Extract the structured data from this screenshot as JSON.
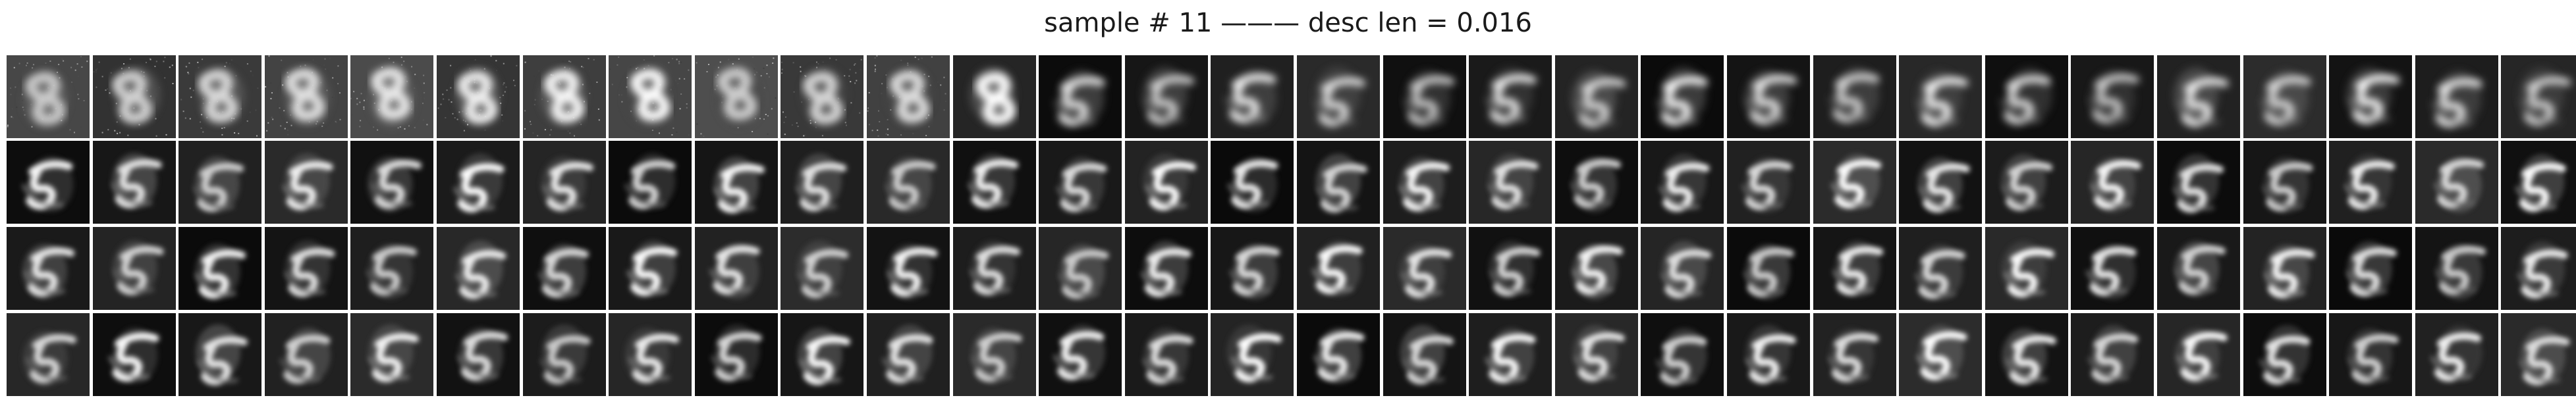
{
  "figure": {
    "title": "sample # 11 ——— desc len = 0.016"
  },
  "grid": {
    "rows": 4,
    "columns": 30
  }
}
